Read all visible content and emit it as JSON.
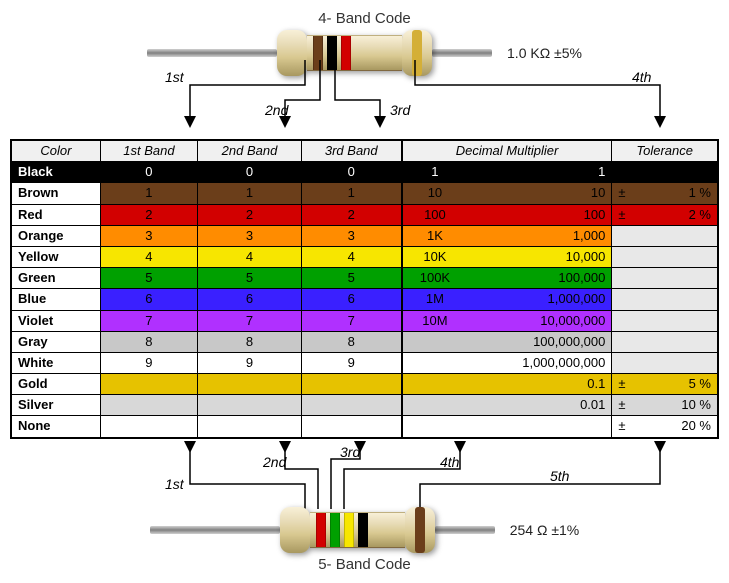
{
  "top": {
    "title": "4- Band Code",
    "value_label": "1.0 KΩ  ±5%",
    "bands": [
      {
        "color": "#6b3e1a"
      },
      {
        "color": "#000000"
      },
      {
        "color": "#d20000"
      },
      {
        "color": "#d4af37",
        "on_bulge_right": true
      }
    ],
    "pointers": [
      "1st",
      "2nd",
      "3rd",
      "4th"
    ]
  },
  "bottom": {
    "title": "5- Band Code",
    "value_label": "254 Ω  ±1%",
    "bands": [
      {
        "color": "#d20000"
      },
      {
        "color": "#00a000"
      },
      {
        "color": "#f7e600"
      },
      {
        "color": "#000000"
      },
      {
        "color": "#6b3e1a",
        "on_bulge_right": true
      }
    ],
    "pointers": [
      "1st",
      "2nd",
      "3rd",
      "4th",
      "5th"
    ]
  },
  "table": {
    "headers": [
      "Color",
      "1st Band",
      "2nd Band",
      "3rd Band",
      "Decimal Multiplier",
      "Tolerance"
    ],
    "rows": [
      {
        "name": "Black",
        "bg": "#000000",
        "fg": "#ffffff",
        "b1": "0",
        "b2": "0",
        "b3": "0",
        "m_si": "1",
        "m_num": "1",
        "tol": ""
      },
      {
        "name": "Brown",
        "bg": "#6b3e1a",
        "fg": "#000000",
        "b1": "1",
        "b2": "1",
        "b3": "1",
        "m_si": "10",
        "m_num": "10",
        "tol": "±   1 %"
      },
      {
        "name": "Red",
        "bg": "#d20000",
        "fg": "#000000",
        "b1": "2",
        "b2": "2",
        "b3": "2",
        "m_si": "100",
        "m_num": "100",
        "tol": "±   2 %"
      },
      {
        "name": "Orange",
        "bg": "#ff8c00",
        "fg": "#000000",
        "b1": "3",
        "b2": "3",
        "b3": "3",
        "m_si": "1K",
        "m_num": "1,000",
        "tol": ""
      },
      {
        "name": "Yellow",
        "bg": "#f7e600",
        "fg": "#000000",
        "b1": "4",
        "b2": "4",
        "b3": "4",
        "m_si": "10K",
        "m_num": "10,000",
        "tol": ""
      },
      {
        "name": "Green",
        "bg": "#00a000",
        "fg": "#000000",
        "b1": "5",
        "b2": "5",
        "b3": "5",
        "m_si": "100K",
        "m_num": "100,000",
        "tol": ""
      },
      {
        "name": "Blue",
        "bg": "#3a20ff",
        "fg": "#000000",
        "b1": "6",
        "b2": "6",
        "b3": "6",
        "m_si": "1M",
        "m_num": "1,000,000",
        "tol": ""
      },
      {
        "name": "Violet",
        "bg": "#b030ff",
        "fg": "#000000",
        "b1": "7",
        "b2": "7",
        "b3": "7",
        "m_si": "10M",
        "m_num": "10,000,000",
        "tol": ""
      },
      {
        "name": "Gray",
        "bg": "#c8c8c8",
        "fg": "#000000",
        "b1": "8",
        "b2": "8",
        "b3": "8",
        "m_si": "",
        "m_num": "100,000,000",
        "tol": ""
      },
      {
        "name": "White",
        "bg": "#ffffff",
        "fg": "#000000",
        "b1": "9",
        "b2": "9",
        "b3": "9",
        "m_si": "",
        "m_num": "1,000,000,000",
        "tol": ""
      },
      {
        "name": "Gold",
        "bg": "#e6c200",
        "fg": "#000000",
        "b1": "",
        "b2": "",
        "b3": "",
        "m_si": "",
        "m_num": "0.1",
        "tol": "±   5 %"
      },
      {
        "name": "Silver",
        "bg": "#d8d8d8",
        "fg": "#000000",
        "b1": "",
        "b2": "",
        "b3": "",
        "m_si": "",
        "m_num": "0.01",
        "tol": "±  10 %"
      },
      {
        "name": "None",
        "bg": "#ffffff",
        "fg": "#000000",
        "b1": "",
        "b2": "",
        "b3": "",
        "m_si": "",
        "m_num": "",
        "tol": "±  20 %"
      }
    ],
    "tol_gray_rows": [
      "Orange",
      "Yellow",
      "Green",
      "Blue",
      "Violet",
      "Gray",
      "White"
    ]
  }
}
